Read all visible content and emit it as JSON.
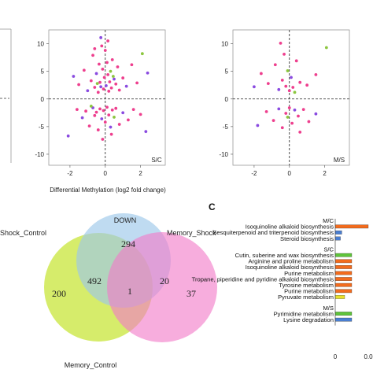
{
  "panel_letters": {
    "c": "C"
  },
  "chart_data": [
    {
      "type": "scatter",
      "panel": "S/C",
      "corner_label": "S/C",
      "xlabel": "Differential Methylation (log2 fold change)",
      "ylabel": "",
      "xlim": [
        -3.2,
        3.4
      ],
      "ylim": [
        -12,
        12.5
      ],
      "xticks": [
        -2,
        0,
        2
      ],
      "yticks": [
        10,
        5,
        0,
        -5,
        -10
      ],
      "reference_lines": {
        "x": 0,
        "y": 0,
        "style": "dashed"
      },
      "colors": {
        "pink": "#ee3f8e",
        "purple": "#8a4be0",
        "green": "#8cc63f"
      },
      "points": [
        [
          -1.8,
          4.1,
          "purple"
        ],
        [
          -1.5,
          2.6,
          "pink"
        ],
        [
          -1.2,
          5.2,
          "pink"
        ],
        [
          -1.0,
          1.5,
          "purple"
        ],
        [
          -0.8,
          3.3,
          "pink"
        ],
        [
          -0.7,
          7.9,
          "pink"
        ],
        [
          -0.6,
          2.1,
          "pink"
        ],
        [
          -0.5,
          4.6,
          "purple"
        ],
        [
          -0.4,
          1.2,
          "pink"
        ],
        [
          -0.35,
          6.3,
          "pink"
        ],
        [
          -0.3,
          3.0,
          "pink"
        ],
        [
          -0.25,
          2.2,
          "purple"
        ],
        [
          -0.2,
          9.6,
          "pink"
        ],
        [
          -0.15,
          5.4,
          "pink"
        ],
        [
          -0.1,
          1.8,
          "pink"
        ],
        [
          -0.05,
          3.9,
          "pink"
        ],
        [
          0.0,
          8.8,
          "pink"
        ],
        [
          0.05,
          2.4,
          "purple"
        ],
        [
          0.1,
          6.6,
          "pink"
        ],
        [
          0.15,
          4.4,
          "pink"
        ],
        [
          0.2,
          1.4,
          "pink"
        ],
        [
          0.25,
          3.1,
          "pink"
        ],
        [
          0.3,
          5.0,
          "green"
        ],
        [
          0.35,
          2.0,
          "pink"
        ],
        [
          0.4,
          7.1,
          "pink"
        ],
        [
          0.5,
          3.6,
          "purple"
        ],
        [
          0.6,
          2.7,
          "pink"
        ],
        [
          0.7,
          5.8,
          "pink"
        ],
        [
          0.8,
          1.6,
          "pink"
        ],
        [
          1.0,
          3.8,
          "pink"
        ],
        [
          1.2,
          2.3,
          "purple"
        ],
        [
          1.5,
          6.2,
          "pink"
        ],
        [
          1.8,
          2.9,
          "pink"
        ],
        [
          2.1,
          8.2,
          "green"
        ],
        [
          2.4,
          4.7,
          "purple"
        ],
        [
          -0.45,
          2.8,
          "green"
        ],
        [
          0.45,
          4.1,
          "green"
        ],
        [
          -0.25,
          11.1,
          "purple"
        ],
        [
          0.15,
          10.5,
          "pink"
        ],
        [
          -0.6,
          9.1,
          "pink"
        ],
        [
          -1.6,
          -1.9,
          "pink"
        ],
        [
          -1.3,
          -3.4,
          "purple"
        ],
        [
          -1.1,
          -2.2,
          "pink"
        ],
        [
          -0.9,
          -4.9,
          "pink"
        ],
        [
          -0.7,
          -1.6,
          "purple"
        ],
        [
          -0.6,
          -3.0,
          "pink"
        ],
        [
          -0.5,
          -2.4,
          "pink"
        ],
        [
          -0.4,
          -5.6,
          "pink"
        ],
        [
          -0.3,
          -1.8,
          "pink"
        ],
        [
          -0.2,
          -3.6,
          "purple"
        ],
        [
          -0.1,
          -2.1,
          "pink"
        ],
        [
          0.0,
          -4.2,
          "pink"
        ],
        [
          0.1,
          -1.5,
          "pink"
        ],
        [
          0.2,
          -2.9,
          "pink"
        ],
        [
          0.3,
          -5.1,
          "purple"
        ],
        [
          0.4,
          -2.0,
          "pink"
        ],
        [
          0.5,
          -3.3,
          "green"
        ],
        [
          0.6,
          -1.7,
          "pink"
        ],
        [
          0.8,
          -4.6,
          "pink"
        ],
        [
          1.0,
          -2.5,
          "purple"
        ],
        [
          1.3,
          -3.8,
          "pink"
        ],
        [
          1.6,
          -1.9,
          "pink"
        ],
        [
          2.0,
          -2.8,
          "pink"
        ],
        [
          2.3,
          -5.9,
          "purple"
        ],
        [
          -2.1,
          -6.7,
          "purple"
        ],
        [
          -0.15,
          -7.3,
          "pink"
        ],
        [
          0.35,
          -6.4,
          "pink"
        ],
        [
          -0.8,
          -1.3,
          "green"
        ]
      ]
    },
    {
      "type": "scatter",
      "panel": "M/S",
      "corner_label": "M/S",
      "xlabel": "",
      "xlim": [
        -3.2,
        3.4
      ],
      "ylim": [
        -12,
        12.5
      ],
      "xticks": [
        -2,
        0,
        2
      ],
      "yticks": [
        10,
        5,
        0,
        -5,
        -10
      ],
      "reference_lines": {
        "x": 0,
        "y": 0,
        "style": "dashed"
      },
      "colors": {
        "pink": "#ee3f8e",
        "purple": "#8a4be0",
        "green": "#8cc63f"
      },
      "points": [
        [
          -1.6,
          4.6,
          "pink"
        ],
        [
          -1.2,
          2.8,
          "pink"
        ],
        [
          -0.8,
          6.2,
          "pink"
        ],
        [
          -0.6,
          1.7,
          "purple"
        ],
        [
          -0.4,
          3.4,
          "pink"
        ],
        [
          -0.3,
          8.1,
          "pink"
        ],
        [
          -0.2,
          2.3,
          "pink"
        ],
        [
          -0.1,
          5.1,
          "green"
        ],
        [
          0.0,
          1.5,
          "pink"
        ],
        [
          0.1,
          3.9,
          "purple"
        ],
        [
          0.2,
          2.1,
          "pink"
        ],
        [
          0.4,
          6.9,
          "pink"
        ],
        [
          0.6,
          3.0,
          "pink"
        ],
        [
          1.0,
          2.5,
          "pink"
        ],
        [
          1.5,
          4.4,
          "pink"
        ],
        [
          2.1,
          9.3,
          "green"
        ],
        [
          -2.0,
          2.2,
          "purple"
        ],
        [
          0.3,
          1.2,
          "green"
        ],
        [
          -0.5,
          10.1,
          "pink"
        ],
        [
          -1.3,
          -2.3,
          "pink"
        ],
        [
          -0.9,
          -3.9,
          "pink"
        ],
        [
          -0.6,
          -1.8,
          "purple"
        ],
        [
          -0.4,
          -5.2,
          "pink"
        ],
        [
          -0.2,
          -2.6,
          "pink"
        ],
        [
          -0.1,
          -3.3,
          "green"
        ],
        [
          0.0,
          -1.6,
          "pink"
        ],
        [
          0.15,
          -4.4,
          "pink"
        ],
        [
          0.3,
          -2.0,
          "purple"
        ],
        [
          0.5,
          -3.1,
          "pink"
        ],
        [
          0.8,
          -1.9,
          "pink"
        ],
        [
          1.1,
          -4.1,
          "pink"
        ],
        [
          1.5,
          -2.7,
          "purple"
        ],
        [
          -1.8,
          -4.8,
          "purple"
        ],
        [
          0.6,
          -6.0,
          "pink"
        ]
      ]
    },
    {
      "type": "venn",
      "title": "DOWN",
      "sets": [
        {
          "name": "Shock_Control",
          "color": "#cde84a"
        },
        {
          "name": "Memory_Shock",
          "color": "#f27bc8"
        },
        {
          "name": "Memory_Control",
          "color": "#9cc8ea"
        }
      ],
      "regions": {
        "top": "294",
        "left": "200",
        "right": "37",
        "left_mid": "492",
        "right_mid": "20",
        "center": "1"
      }
    },
    {
      "type": "bar",
      "orientation": "horizontal",
      "groups": [
        {
          "header": "M/C",
          "items": [
            {
              "label": "Isoquinoline alkaloid biosynthesis",
              "label_color": "green",
              "value": 0.14,
              "color": "#f26b1d"
            },
            {
              "label": "Sesquiterpenoid and triterpenoid biosynthesis",
              "label_color": "default",
              "value": 0.028,
              "color": "#4a7ed1"
            },
            {
              "label": "Steroid biosynthesis",
              "label_color": "default",
              "value": 0.022,
              "color": "#4a7ed1"
            }
          ]
        },
        {
          "header": "S/C",
          "items": [
            {
              "label": "Cutin, suberine and wax biosynthesis",
              "label_color": "default",
              "value": 0.07,
              "color": "#5fc43a"
            },
            {
              "label": "Arginine and proline metabolism",
              "label_color": "default",
              "value": 0.07,
              "color": "#f26b1d"
            },
            {
              "label": "Isoquinoline alkaloid biosynthesis",
              "label_color": "green",
              "value": 0.07,
              "color": "#f26b1d"
            },
            {
              "label": "Purine metabolism",
              "label_color": "red",
              "value": 0.07,
              "color": "#f26b1d"
            },
            {
              "label": "Tropane, piperidine and pyridine alkaloid biosynthesis",
              "label_color": "default",
              "value": 0.07,
              "color": "#f26b1d"
            },
            {
              "label": "Tyrosine metabolism",
              "label_color": "default",
              "value": 0.07,
              "color": "#f26b1d"
            },
            {
              "label": "Purine metabolism",
              "label_color": "red",
              "value": 0.07,
              "color": "#f26b1d"
            },
            {
              "label": "Pyruvate metabolism",
              "label_color": "default",
              "value": 0.04,
              "color": "#e9e02a"
            }
          ]
        },
        {
          "header": "M/S",
          "items": [
            {
              "label": "Pyrimidine metabolism",
              "label_color": "default",
              "value": 0.07,
              "color": "#5fc43a"
            },
            {
              "label": "Lysine degradation",
              "label_color": "default",
              "value": 0.07,
              "color": "#4a7ed1"
            }
          ]
        }
      ],
      "xticks": [
        "0",
        "0.0"
      ]
    }
  ]
}
